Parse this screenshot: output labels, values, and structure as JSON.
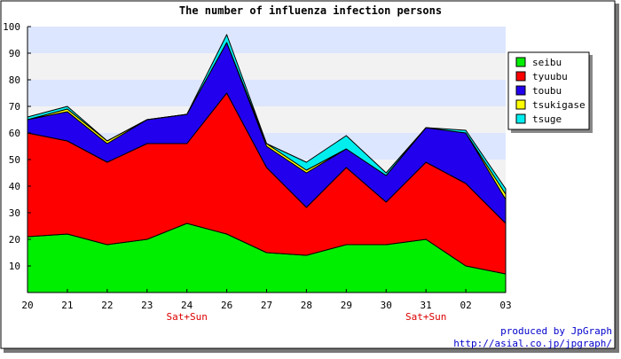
{
  "chart_data": {
    "type": "area",
    "stacked": true,
    "title": "The number of influenza infection persons",
    "categories": [
      "20",
      "21",
      "22",
      "23",
      "24",
      "26",
      "27",
      "28",
      "29",
      "30",
      "31",
      "02",
      "03"
    ],
    "category_notes": [
      {
        "category": "24",
        "text": "Sat+Sun"
      },
      {
        "category": "31",
        "text": "Sat+Sun"
      }
    ],
    "ylim": [
      0,
      100
    ],
    "yticks": [
      10,
      20,
      30,
      40,
      50,
      60,
      70,
      80,
      90,
      100
    ],
    "xlabel": "",
    "ylabel": "",
    "grid": true,
    "legend_position": "right",
    "series": [
      {
        "name": "seibu",
        "color": "#00ee00",
        "values": [
          21,
          22,
          18,
          20,
          26,
          22,
          15,
          14,
          18,
          18,
          20,
          10,
          7
        ]
      },
      {
        "name": "tyuubu",
        "color": "#ff0000",
        "values": [
          39,
          35,
          31,
          36,
          30,
          53,
          32,
          18,
          29,
          16,
          29,
          31,
          19
        ]
      },
      {
        "name": "toubu",
        "color": "#2200ee",
        "values": [
          5,
          11,
          7,
          9,
          11,
          19,
          8,
          13,
          7,
          10,
          13,
          19,
          9
        ]
      },
      {
        "name": "tsukigase",
        "color": "#ffff00",
        "values": [
          0,
          1,
          1,
          0,
          0,
          0,
          1,
          1,
          0,
          0,
          0,
          0,
          2
        ]
      },
      {
        "name": "tsuge",
        "color": "#00eeee",
        "values": [
          1,
          1,
          0,
          0,
          0,
          3,
          0,
          3,
          5,
          1,
          0,
          1,
          2
        ]
      }
    ]
  },
  "footer": {
    "line1": "produced by JpGraph",
    "line2": "http://asial.co.jp/jpgraph/"
  }
}
